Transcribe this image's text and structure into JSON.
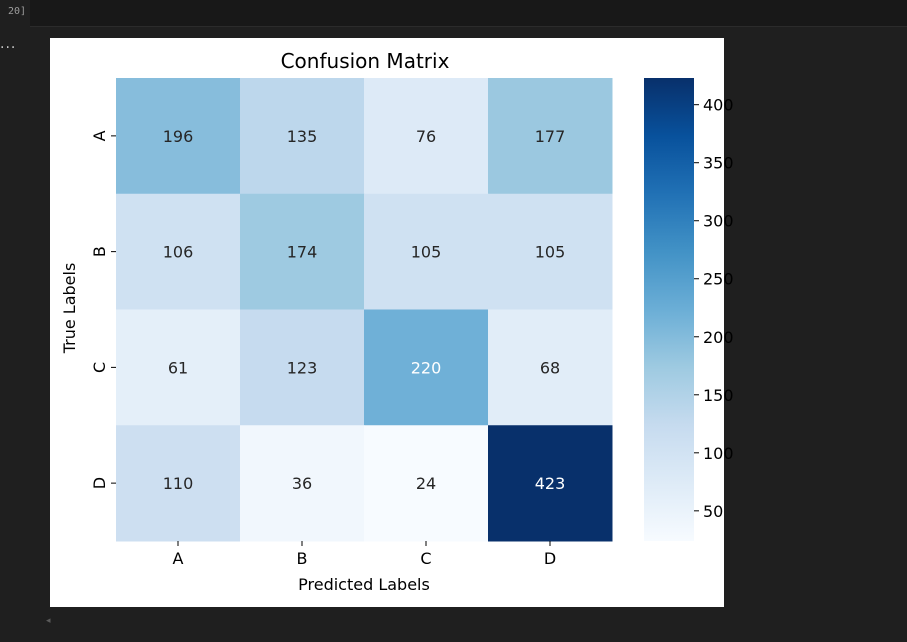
{
  "notebook": {
    "execution_count": "20]",
    "output_indicator": "...",
    "scroll_arrow": "◂"
  },
  "chart_data": {
    "type": "heatmap",
    "title": "Confusion Matrix",
    "xlabel": "Predicted Labels",
    "ylabel": "True Labels",
    "x_categories": [
      "A",
      "B",
      "C",
      "D"
    ],
    "y_categories": [
      "A",
      "B",
      "C",
      "D"
    ],
    "values": [
      [
        196,
        135,
        76,
        177
      ],
      [
        106,
        174,
        105,
        105
      ],
      [
        61,
        123,
        220,
        68
      ],
      [
        110,
        36,
        24,
        423
      ]
    ],
    "colormap": "Blues",
    "colorbar": {
      "min": 24,
      "max": 423,
      "ticks": [
        50,
        100,
        150,
        200,
        250,
        300,
        350,
        400
      ]
    },
    "colors": {
      "low": "#f7fbff",
      "high": "#08306b",
      "label_dark": "#262626",
      "label_light": "#ffffff"
    }
  }
}
